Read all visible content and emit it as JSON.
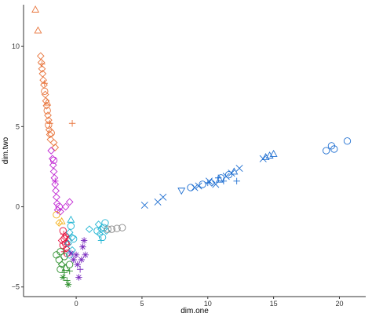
{
  "chart_data": {
    "type": "scatter",
    "title": "",
    "xlabel": "dim.one",
    "ylabel": "dim.two",
    "xlim": [
      -4,
      22
    ],
    "ylim": [
      -5.6,
      12.6
    ],
    "xticks": [
      {
        "value": 0,
        "label": "0"
      },
      {
        "value": 5,
        "label": "5"
      },
      {
        "value": 10,
        "label": "10"
      },
      {
        "value": 15,
        "label": "15"
      },
      {
        "value": 20,
        "label": "20"
      }
    ],
    "yticks": [
      {
        "value": -5,
        "label": "−5"
      },
      {
        "value": 0,
        "label": "0"
      },
      {
        "value": 5,
        "label": "5"
      },
      {
        "value": 10,
        "label": "10"
      }
    ],
    "grid": false,
    "legend": "none",
    "series": [
      {
        "color": "#e8743b",
        "points": [
          [
            -3.1,
            12.3,
            "triangle"
          ],
          [
            -2.9,
            11.0,
            "triangle"
          ],
          [
            -2.7,
            9.4,
            "diamond"
          ],
          [
            -2.65,
            9.0,
            "diamond"
          ],
          [
            -2.6,
            8.6,
            "diamond"
          ],
          [
            -2.55,
            8.3,
            "diamond"
          ],
          [
            -2.5,
            7.9,
            "diamond"
          ],
          [
            -2.45,
            7.6,
            "diamond"
          ],
          [
            -2.4,
            7.2,
            "circle"
          ],
          [
            -2.35,
            7.0,
            "diamond"
          ],
          [
            -2.3,
            6.6,
            "diamond"
          ],
          [
            -2.25,
            6.3,
            "diamond"
          ],
          [
            -2.2,
            6.0,
            "circle"
          ],
          [
            -2.15,
            5.7,
            "diamond"
          ],
          [
            -2.1,
            5.4,
            "diamond"
          ],
          [
            -2.1,
            5.1,
            "circle"
          ],
          [
            -2.05,
            4.8,
            "diamond"
          ],
          [
            -2.0,
            4.5,
            "diamond"
          ],
          [
            -1.95,
            4.2,
            "diamond"
          ],
          [
            -2.6,
            8.9,
            "plus"
          ],
          [
            -2.4,
            7.7,
            "plus"
          ],
          [
            -2.2,
            6.5,
            "triangle"
          ],
          [
            -2.0,
            5.2,
            "plus"
          ],
          [
            -1.9,
            4.6,
            "circle"
          ],
          [
            -1.6,
            3.7,
            "diamond"
          ],
          [
            -1.7,
            4.0,
            "diamond"
          ],
          [
            -0.3,
            5.2,
            "plus"
          ]
        ]
      },
      {
        "color": "#c026d3",
        "points": [
          [
            -1.9,
            3.5,
            "diamond"
          ],
          [
            -1.8,
            3.0,
            "diamond"
          ],
          [
            -1.75,
            2.6,
            "diamond"
          ],
          [
            -1.7,
            2.2,
            "diamond"
          ],
          [
            -1.65,
            1.8,
            "diamond"
          ],
          [
            -1.6,
            1.4,
            "diamond"
          ],
          [
            -1.55,
            1.0,
            "diamond"
          ],
          [
            -1.5,
            0.6,
            "diamond"
          ],
          [
            -1.45,
            0.2,
            "diamond"
          ],
          [
            -1.4,
            -0.2,
            "diamond"
          ],
          [
            -1.3,
            0.0,
            "circle"
          ],
          [
            -1.6,
            1.6,
            "plus"
          ],
          [
            -1.2,
            -0.3,
            "diamond"
          ],
          [
            -0.8,
            0.0,
            "diamond"
          ],
          [
            -0.5,
            0.3,
            "diamond"
          ],
          [
            -1.7,
            2.9,
            "circle"
          ]
        ]
      },
      {
        "color": "#f5b01a",
        "points": [
          [
            -1.5,
            -0.5,
            "circle"
          ],
          [
            -1.1,
            -0.9,
            "triangle"
          ],
          [
            -1.3,
            -1.0,
            "diamond"
          ]
        ]
      },
      {
        "color": "#e5133e",
        "points": [
          [
            -1.0,
            -1.5,
            "circle"
          ],
          [
            -0.8,
            -1.8,
            "diamond"
          ],
          [
            -0.9,
            -2.0,
            "circle"
          ],
          [
            -0.7,
            -2.2,
            "triangle"
          ],
          [
            -1.0,
            -2.4,
            "circle"
          ],
          [
            -0.75,
            -2.6,
            "diamond"
          ],
          [
            -0.9,
            -2.8,
            "plus"
          ],
          [
            -0.6,
            -1.9,
            "cross"
          ],
          [
            -1.1,
            -2.1,
            "diamond"
          ],
          [
            -0.8,
            -2.3,
            "circle"
          ],
          [
            -0.95,
            -1.7,
            "plus"
          ],
          [
            -0.7,
            -2.9,
            "circle"
          ]
        ]
      },
      {
        "color": "#22b5d3",
        "points": [
          [
            -0.5,
            -1.6,
            "diamond"
          ],
          [
            -0.3,
            -1.9,
            "diamond"
          ],
          [
            -0.6,
            -2.3,
            "diamond"
          ],
          [
            -0.2,
            -2.0,
            "circle"
          ],
          [
            -0.4,
            -1.2,
            "circle"
          ],
          [
            -0.3,
            -2.7,
            "diamond"
          ],
          [
            -0.5,
            -3.0,
            "circle"
          ],
          [
            1.7,
            -1.1,
            "diamond"
          ],
          [
            1.9,
            -1.4,
            "diamond"
          ],
          [
            2.1,
            -1.3,
            "circle"
          ],
          [
            1.8,
            -1.7,
            "diamond"
          ],
          [
            2.3,
            -1.5,
            "diamond"
          ],
          [
            1.6,
            -1.5,
            "circle"
          ],
          [
            2.0,
            -1.9,
            "circle"
          ],
          [
            1.9,
            -2.1,
            "plus"
          ],
          [
            2.2,
            -1.0,
            "circle"
          ],
          [
            -0.4,
            -0.8,
            "triangle"
          ],
          [
            1.0,
            -1.4,
            "diamond"
          ]
        ]
      },
      {
        "color": "#2b8e2b",
        "points": [
          [
            -1.5,
            -3.0,
            "circle"
          ],
          [
            -1.3,
            -3.3,
            "circle"
          ],
          [
            -1.1,
            -3.6,
            "diamond"
          ],
          [
            -1.2,
            -3.9,
            "circle"
          ],
          [
            -0.9,
            -4.1,
            "plus"
          ],
          [
            -1.0,
            -4.4,
            "asterisk"
          ],
          [
            -0.8,
            -3.8,
            "triangle"
          ],
          [
            -0.5,
            -4.0,
            "plus"
          ],
          [
            -0.7,
            -4.6,
            "plus"
          ],
          [
            -0.6,
            -4.85,
            "asterisk"
          ],
          [
            -0.5,
            -3.6,
            "circle"
          ],
          [
            -1.2,
            -2.8,
            "circle"
          ],
          [
            -0.9,
            -3.1,
            "circle"
          ]
        ]
      },
      {
        "color": "#7b2ebf",
        "points": [
          [
            -0.4,
            -2.9,
            "asterisk"
          ],
          [
            -0.2,
            -3.3,
            "asterisk"
          ],
          [
            0.0,
            -3.0,
            "asterisk"
          ],
          [
            0.1,
            -3.6,
            "asterisk"
          ],
          [
            0.4,
            -3.3,
            "asterisk"
          ],
          [
            0.2,
            -4.4,
            "asterisk"
          ],
          [
            0.5,
            -2.5,
            "asterisk"
          ],
          [
            0.7,
            -3.0,
            "asterisk"
          ],
          [
            0.3,
            -3.9,
            "plus"
          ],
          [
            0.6,
            -2.1,
            "asterisk"
          ]
        ]
      },
      {
        "color": "#8a8a8a",
        "points": [
          [
            2.4,
            -1.4,
            "circle"
          ],
          [
            2.7,
            -1.4,
            "circle"
          ],
          [
            3.1,
            -1.35,
            "circle"
          ],
          [
            3.5,
            -1.3,
            "circle"
          ]
        ]
      },
      {
        "color": "#1f6fd1",
        "points": [
          [
            5.2,
            0.1,
            "cross"
          ],
          [
            6.2,
            0.3,
            "cross"
          ],
          [
            6.6,
            0.6,
            "cross"
          ],
          [
            8.0,
            1.0,
            "triangle-down"
          ],
          [
            8.7,
            1.2,
            "circle"
          ],
          [
            9.0,
            1.2,
            "cross"
          ],
          [
            9.3,
            1.3,
            "cross"
          ],
          [
            9.6,
            1.4,
            "circle"
          ],
          [
            10.0,
            1.5,
            "plus"
          ],
          [
            10.3,
            1.5,
            "diamond"
          ],
          [
            10.6,
            1.4,
            "cross"
          ],
          [
            10.9,
            1.7,
            "triangle"
          ],
          [
            11.2,
            1.6,
            "plus"
          ],
          [
            11.4,
            1.9,
            "cross"
          ],
          [
            11.6,
            2.0,
            "circle"
          ],
          [
            11.8,
            2.1,
            "cross"
          ],
          [
            12.0,
            2.2,
            "triangle"
          ],
          [
            12.2,
            1.6,
            "plus"
          ],
          [
            12.4,
            2.4,
            "cross"
          ],
          [
            14.2,
            3.0,
            "cross"
          ],
          [
            14.4,
            3.1,
            "triangle"
          ],
          [
            14.7,
            3.2,
            "triangle"
          ],
          [
            15.0,
            3.3,
            "triangle"
          ],
          [
            19.0,
            3.5,
            "circle"
          ],
          [
            19.4,
            3.8,
            "circle"
          ],
          [
            19.6,
            3.6,
            "circle"
          ],
          [
            20.6,
            4.1,
            "circle"
          ],
          [
            10.1,
            1.6,
            "cross"
          ],
          [
            10.8,
            1.8,
            "plus"
          ],
          [
            11.0,
            1.8,
            "circle"
          ]
        ]
      }
    ]
  }
}
